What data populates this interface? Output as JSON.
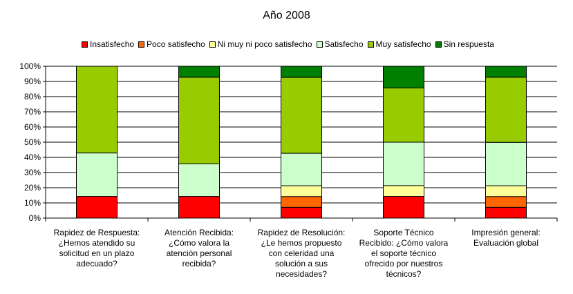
{
  "chart_data": {
    "type": "bar",
    "stacked": true,
    "percent": true,
    "title": "Año 2008",
    "xlabel": "",
    "ylabel": "",
    "ylim": [
      0,
      100
    ],
    "yticks": [
      "0%",
      "10%",
      "20%",
      "30%",
      "40%",
      "50%",
      "60%",
      "70%",
      "80%",
      "90%",
      "100%"
    ],
    "grid": true,
    "legend_position": "top",
    "categories": [
      "Rapidez de Respuesta: ¿Hemos atendido su solicitud en un plazo adecuado?",
      "Atención Recibida: ¿Cómo valora la atención personal recibida?",
      "Rapidez de Resolución: ¿Le hemos propuesto con celeridad una solución a sus necesidades?",
      "Soporte Técnico Recibido: ¿Cómo valora el soporte técnico ofrecido por nuestros técnicos?",
      "Impresión general: Evaluación global"
    ],
    "category_lines": [
      [
        "Rapidez de Respuesta:",
        "¿Hemos atendido su",
        "solicitud en un plazo",
        "adecuado?"
      ],
      [
        "Atención Recibida:",
        "¿Cómo valora la",
        "atención personal",
        "recibida?"
      ],
      [
        "Rapidez de Resolución:",
        "¿Le hemos propuesto",
        "con celeridad una",
        "solución a sus",
        "necesidades?"
      ],
      [
        "Soporte Técnico",
        "Recibido: ¿Cómo valora",
        "el soporte técnico",
        "ofrecido por nuestros",
        "técnicos?"
      ],
      [
        "Impresión general:",
        "Evaluación global"
      ]
    ],
    "series": [
      {
        "name": "Insatisfecho",
        "color": "#ff0000",
        "values": [
          14.3,
          14.3,
          7.1,
          14.3,
          7.1
        ]
      },
      {
        "name": "Poco satisfecho",
        "color": "#ff6600",
        "values": [
          0,
          0,
          7.1,
          0,
          7.1
        ]
      },
      {
        "name": "Ni muy ni poco satisfecho",
        "color": "#ffff99",
        "values": [
          0,
          0,
          7.1,
          7.1,
          7.1
        ]
      },
      {
        "name": "Satisfecho",
        "color": "#ccffcc",
        "values": [
          28.6,
          21.4,
          21.4,
          28.6,
          28.6
        ]
      },
      {
        "name": "Muy satisfecho",
        "color": "#99cc00",
        "values": [
          57.1,
          57.1,
          50.0,
          35.7,
          42.9
        ]
      },
      {
        "name": "Sin respuesta",
        "color": "#008000",
        "values": [
          0,
          7.2,
          7.3,
          14.3,
          7.2
        ]
      }
    ]
  }
}
